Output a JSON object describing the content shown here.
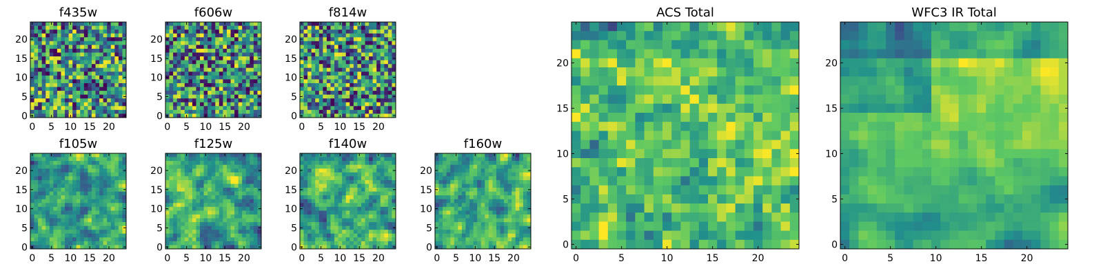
{
  "colormap": [
    "#440154",
    "#3b528b",
    "#21918c",
    "#5ec962",
    "#fde725"
  ],
  "chart_data": [
    {
      "id": "f435w",
      "type": "heatmap",
      "title": "f435w",
      "grid_size": 25,
      "xticks": [
        0,
        5,
        10,
        15,
        20
      ],
      "yticks": [
        0,
        5,
        10,
        15,
        20
      ],
      "pattern": "noise",
      "seed": 11
    },
    {
      "id": "f606w",
      "type": "heatmap",
      "title": "f606w",
      "grid_size": 25,
      "xticks": [
        0,
        5,
        10,
        15,
        20
      ],
      "yticks": [
        0,
        5,
        10,
        15,
        20
      ],
      "pattern": "noise",
      "seed": 23
    },
    {
      "id": "f814w",
      "type": "heatmap",
      "title": "f814w",
      "grid_size": 25,
      "xticks": [
        0,
        5,
        10,
        15,
        20
      ],
      "yticks": [
        0,
        5,
        10,
        15,
        20
      ],
      "pattern": "noise",
      "seed": 37
    },
    {
      "id": "f105w",
      "type": "heatmap",
      "title": "f105w",
      "grid_size": 25,
      "xticks": [
        0,
        5,
        10,
        15,
        20
      ],
      "yticks": [
        0,
        5,
        10,
        15,
        20
      ],
      "pattern": "smooth",
      "seed": 41
    },
    {
      "id": "f125w",
      "type": "heatmap",
      "title": "f125w",
      "grid_size": 25,
      "xticks": [
        0,
        5,
        10,
        15,
        20
      ],
      "yticks": [
        0,
        5,
        10,
        15,
        20
      ],
      "pattern": "smooth",
      "seed": 53
    },
    {
      "id": "f140w",
      "type": "heatmap",
      "title": "f140w",
      "grid_size": 25,
      "xticks": [
        0,
        5,
        10,
        15,
        20
      ],
      "yticks": [
        0,
        5,
        10,
        15,
        20
      ],
      "pattern": "smooth",
      "seed": 67
    },
    {
      "id": "f160w",
      "type": "heatmap",
      "title": "f160w",
      "grid_size": 25,
      "xticks": [
        0,
        5,
        10,
        15,
        20
      ],
      "yticks": [
        0,
        5,
        10,
        15,
        20
      ],
      "pattern": "smooth",
      "seed": 79
    },
    {
      "id": "acs-total",
      "type": "heatmap",
      "title": "ACS Total",
      "grid_size": 25,
      "xticks": [
        0,
        5,
        10,
        15,
        20
      ],
      "yticks": [
        0,
        5,
        10,
        15,
        20
      ],
      "pattern": "acs",
      "seed": 97
    },
    {
      "id": "wfc3-ir-total",
      "type": "heatmap",
      "title": "WFC3 IR Total",
      "grid_size": 25,
      "xticks": [
        0,
        5,
        10,
        15,
        20
      ],
      "yticks": [
        0,
        5,
        10,
        15,
        20
      ],
      "pattern": "ir",
      "seed": 113
    }
  ]
}
